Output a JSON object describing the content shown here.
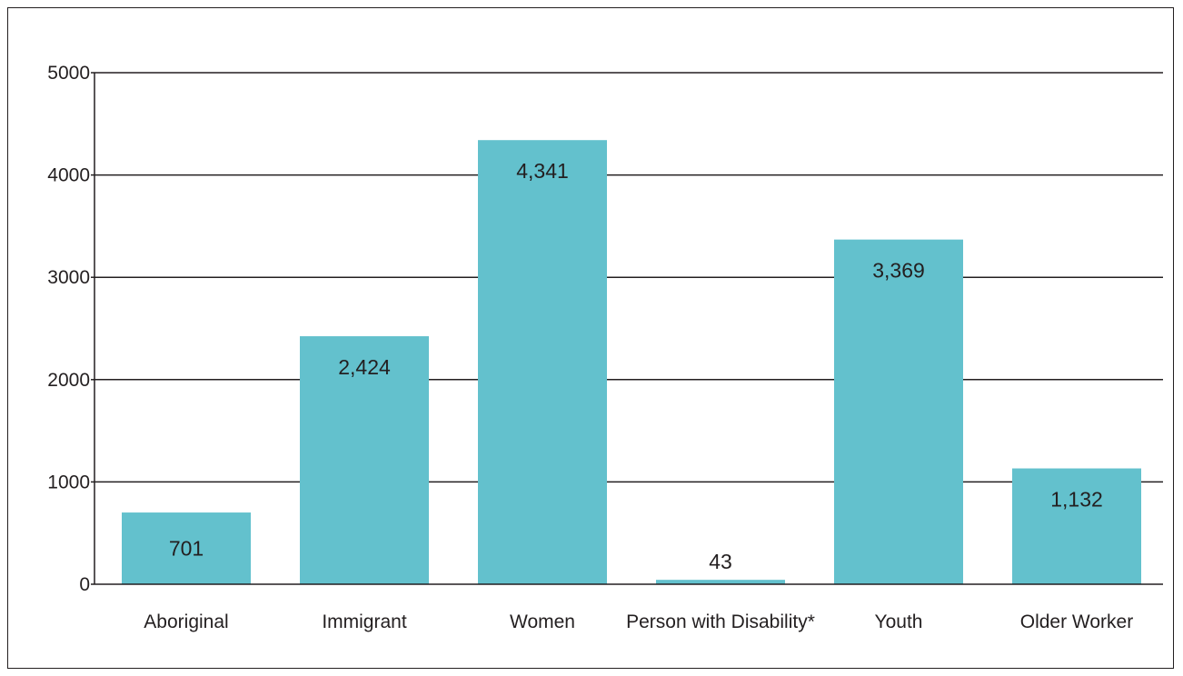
{
  "chart_data": {
    "type": "bar",
    "categories": [
      "Aboriginal",
      "Immigrant",
      "Women",
      "Person with Disability*",
      "Youth",
      "Older Worker"
    ],
    "values": [
      701,
      2424,
      4341,
      43,
      3369,
      1132
    ],
    "data_labels": [
      "701",
      "2,424",
      "4,341",
      "43",
      "3,369",
      "1,132"
    ],
    "title": "",
    "xlabel": "",
    "ylabel": "",
    "ylim": [
      0,
      5000
    ],
    "yticks": [
      0,
      1000,
      2000,
      3000,
      4000,
      5000
    ],
    "ytick_labels": [
      "0",
      "1000",
      "2000",
      "3000",
      "4000",
      "5000"
    ],
    "grid": "horizontal",
    "legend": "none",
    "bar_color": "#63c1cd",
    "line_color": "#231f20"
  }
}
